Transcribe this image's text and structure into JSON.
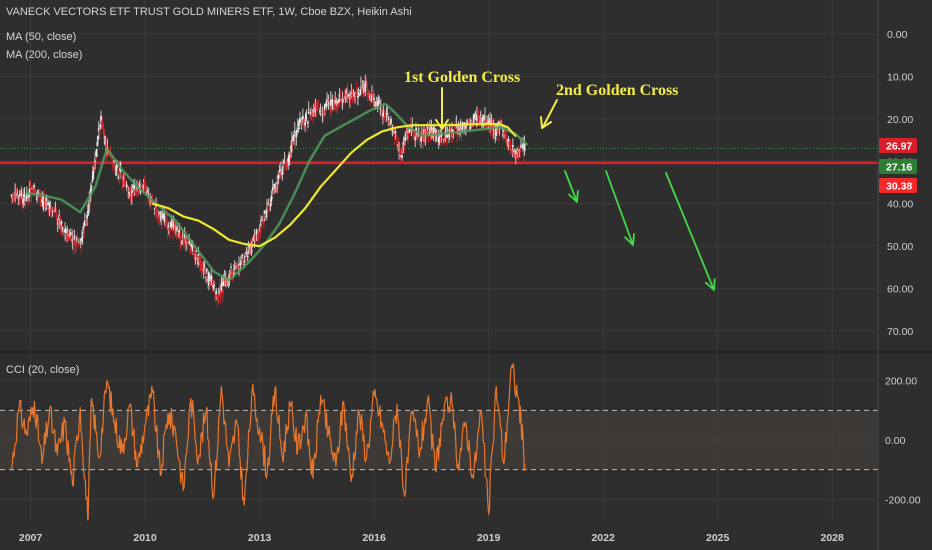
{
  "chart_data": [
    {
      "type": "candlestick",
      "title": "VANECK VECTORS ETF TRUST GOLD MINERS ETF, 1W, Cboe BZX, Heikin Ashi",
      "y_axis_inverted": true,
      "ylim": [
        0,
        70
      ],
      "xlim": [
        2006.2,
        2029.2
      ],
      "y_ticks": [
        "0.00",
        "10.00",
        "20.00",
        "30.00",
        "40.00",
        "50.00",
        "60.00",
        "70.00"
      ],
      "x_ticks": [
        "2007",
        "2010",
        "2013",
        "2016",
        "2019",
        "2022",
        "2025",
        "2028"
      ],
      "x_tick_values": [
        2007,
        2010,
        2013,
        2016,
        2019,
        2022,
        2025,
        2028
      ],
      "price_series": {
        "x": [
          2006.5,
          2006.8,
          2007.1,
          2007.4,
          2007.7,
          2008.0,
          2008.3,
          2008.5,
          2008.7,
          2008.85,
          2009.0,
          2009.3,
          2009.6,
          2009.9,
          2010.2,
          2010.5,
          2010.8,
          2011.1,
          2011.4,
          2011.7,
          2011.9,
          2012.2,
          2012.5,
          2012.8,
          2013.0,
          2013.15,
          2013.4,
          2013.7,
          2014.0,
          2014.3,
          2014.6,
          2014.9,
          2015.2,
          2015.5,
          2015.8,
          2016.0,
          2016.2,
          2016.5,
          2016.7,
          2016.9,
          2017.2,
          2017.5,
          2017.8,
          2018.1,
          2018.4,
          2018.7,
          2019.0,
          2019.2,
          2019.4,
          2019.6,
          2019.8,
          2019.95
        ],
        "y": [
          38,
          39,
          37,
          40,
          43,
          48,
          50,
          42,
          30,
          19,
          28,
          32,
          38,
          35,
          40,
          44,
          46,
          49,
          53,
          58,
          62,
          57,
          54,
          50,
          46,
          42,
          36,
          30,
          22,
          19,
          18,
          17,
          15,
          14,
          13,
          16,
          18,
          22,
          29,
          22,
          24,
          23,
          25,
          23,
          22,
          20,
          21,
          22,
          23,
          27,
          28,
          27
        ]
      },
      "series": [
        {
          "name": "MA (50, close)",
          "color": "#4f9a5a",
          "x": [
            2006.9,
            2007.3,
            2007.8,
            2008.3,
            2008.7,
            2009.0,
            2009.4,
            2009.8,
            2010.3,
            2010.8,
            2011.3,
            2011.8,
            2012.2,
            2012.7,
            2013.1,
            2013.5,
            2013.9,
            2014.3,
            2014.7,
            2015.1,
            2015.5,
            2015.9,
            2016.3,
            2016.6,
            2016.9,
            2017.3,
            2017.8,
            2018.3,
            2018.8,
            2019.3,
            2019.7,
            2020.0
          ],
          "y": [
            37.5,
            38,
            39,
            42,
            36,
            27,
            32,
            36,
            40,
            44,
            50,
            56,
            58,
            54,
            50,
            45,
            38,
            30,
            24,
            22,
            20,
            18,
            16.5,
            19,
            22,
            24,
            23.5,
            23,
            22.5,
            22,
            23.5,
            26
          ]
        },
        {
          "name": "MA (200, close)",
          "color": "#f0e82e",
          "x": [
            2010.2,
            2010.6,
            2011.0,
            2011.4,
            2011.8,
            2012.2,
            2012.6,
            2013.0,
            2013.4,
            2013.8,
            2014.2,
            2014.6,
            2015.0,
            2015.4,
            2015.8,
            2016.2,
            2016.6,
            2017.0,
            2017.5,
            2018.0,
            2018.5,
            2019.0,
            2019.3,
            2019.5,
            2019.7
          ],
          "y": [
            40,
            41,
            43,
            44,
            46,
            48.5,
            49.5,
            50,
            48,
            45,
            41,
            36,
            32,
            28,
            25,
            23,
            22,
            21.5,
            21.5,
            21.5,
            21.3,
            21.2,
            21.3,
            22,
            24
          ]
        }
      ],
      "horizontal_lines": [
        {
          "value": 30.38,
          "color": "#d8202a"
        },
        {
          "value": 26.97,
          "color": "#2e9a3e"
        }
      ],
      "price_labels": [
        {
          "text": "26.97",
          "value": 26.97,
          "color": "#d8202a"
        },
        {
          "text": "27.16",
          "value": 27.16,
          "color": "#2e7d32"
        },
        {
          "text": "30.38",
          "value": 30.38,
          "color": "#f42a2a"
        }
      ],
      "annotations": [
        {
          "text": "1st Golden Cross",
          "x": 2016.8,
          "y": 7.8
        },
        {
          "text": "2nd Golden Cross",
          "x": 2019.8,
          "y": 11.8
        }
      ],
      "legend_entries": [
        "MA (50, close)",
        "MA (200, close)"
      ]
    },
    {
      "type": "line",
      "title": "CCI (20, close)",
      "ylim": [
        -270,
        290
      ],
      "y_ticks": [
        "200.00",
        "0.00",
        "-200.00"
      ],
      "y_tick_values": [
        200,
        0,
        -200
      ],
      "bands": [
        -100,
        100
      ],
      "series": [
        {
          "name": "CCI (20, close)",
          "color": "#e8762c",
          "x": [
            2006.5,
            2006.7,
            2006.9,
            2007.1,
            2007.3,
            2007.5,
            2007.7,
            2007.9,
            2008.1,
            2008.3,
            2008.5,
            2008.6,
            2008.8,
            2009.0,
            2009.2,
            2009.4,
            2009.6,
            2009.8,
            2010.0,
            2010.2,
            2010.4,
            2010.6,
            2010.8,
            2011.0,
            2011.2,
            2011.4,
            2011.6,
            2011.8,
            2012.0,
            2012.2,
            2012.4,
            2012.6,
            2012.8,
            2013.0,
            2013.2,
            2013.4,
            2013.6,
            2013.8,
            2014.0,
            2014.2,
            2014.4,
            2014.6,
            2014.8,
            2015.0,
            2015.2,
            2015.4,
            2015.6,
            2015.8,
            2016.0,
            2016.2,
            2016.4,
            2016.6,
            2016.8,
            2017.0,
            2017.2,
            2017.4,
            2017.6,
            2017.8,
            2018.0,
            2018.2,
            2018.4,
            2018.6,
            2018.8,
            2019.0,
            2019.2,
            2019.4,
            2019.6,
            2019.8,
            2019.95
          ],
          "y": [
            -100,
            110,
            20,
            130,
            -80,
            100,
            -50,
            60,
            -150,
            110,
            -270,
            140,
            -60,
            200,
            60,
            -40,
            120,
            -90,
            50,
            160,
            -120,
            90,
            30,
            -170,
            140,
            -60,
            100,
            -190,
            180,
            -90,
            60,
            -220,
            160,
            40,
            -110,
            170,
            -60,
            120,
            -30,
            80,
            -130,
            150,
            20,
            -90,
            130,
            -140,
            100,
            -60,
            150,
            60,
            -80,
            120,
            -190,
            90,
            -40,
            130,
            -100,
            70,
            140,
            -80,
            60,
            -130,
            100,
            -250,
            180,
            -80,
            250,
            120,
            -80
          ]
        }
      ]
    }
  ],
  "cci_legend": "CCI (20, close)",
  "price_legend": {
    "title": "VANECK VECTORS ETF TRUST GOLD MINERS ETF, 1W, Cboe BZX, Heikin Ashi",
    "ma50": "MA (50, close)",
    "ma200": "MA (200, close)"
  },
  "colors": {
    "background": "#2e2e2e",
    "grid": "#3b3b3b",
    "candle_up": "#e9e9e9",
    "candle_down": "#d7272e",
    "ma50": "#4f9a5a",
    "ma200": "#f0e82e",
    "cci": "#e8762c",
    "arrow": "#44d94a",
    "annotation": "#f2ec4a"
  },
  "arrows": [
    {
      "name": "down-arrow-1",
      "x1": 2020.3,
      "y1": 34,
      "x2": 2020.8,
      "y2": 40
    },
    {
      "name": "down-arrow-2",
      "x1": 2021.4,
      "y1": 34,
      "x2": 2022.2,
      "y2": 50
    },
    {
      "name": "down-arrow-3",
      "x1": 2023.2,
      "y1": 34,
      "x2": 2024.6,
      "y2": 61
    }
  ]
}
